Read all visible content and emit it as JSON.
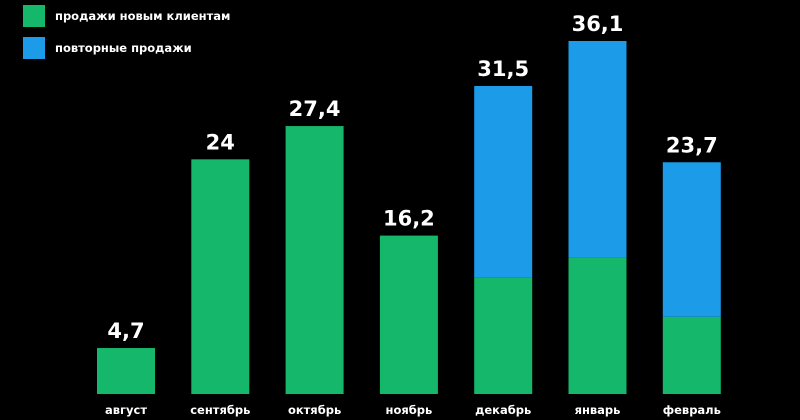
{
  "chart_data": {
    "type": "bar",
    "stacked": true,
    "categories": [
      "август",
      "сентябрь",
      "октябрь",
      "ноябрь",
      "декабрь",
      "январь",
      "февраль"
    ],
    "series": [
      {
        "name": "продажи новым клиентам",
        "color": "#15b86a",
        "values": [
          4.7,
          24,
          27.4,
          16.2,
          11.9,
          14.0,
          7.9
        ]
      },
      {
        "name": "повторные продажи",
        "color": "#1b9be8",
        "values": [
          0,
          0,
          0,
          0,
          19.6,
          22.1,
          15.8
        ]
      }
    ],
    "totals": [
      "4,7",
      "24",
      "27,4",
      "16,2",
      "31,5",
      "36,1",
      "23,7"
    ],
    "ylim": [
      0,
      36.1
    ],
    "grid": false,
    "legend_position": "top-left"
  }
}
